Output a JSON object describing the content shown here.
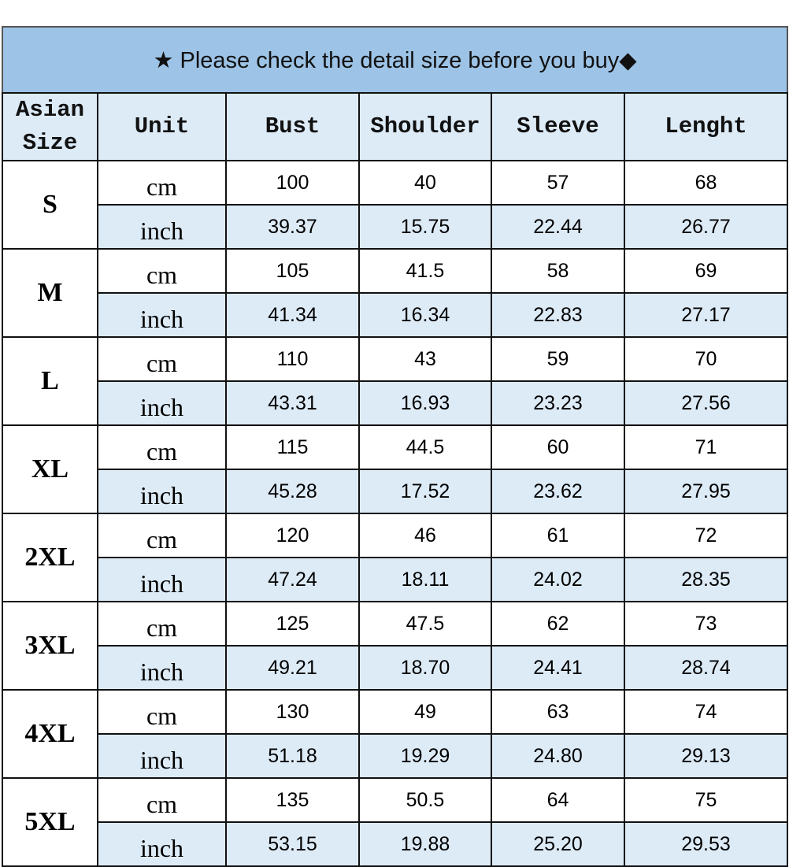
{
  "title": "★ Please check the detail size before you buy◆",
  "headers": [
    "Asian Size",
    "Unit",
    "Bust",
    "Shoulder",
    "Sleeve",
    "Lenght"
  ],
  "colors": {
    "banner": "#9dc3e6",
    "header_bg": "#ddebf7",
    "inch_row_bg": "#ddebf7",
    "cm_row_bg": "#ffffff"
  },
  "units": {
    "cm": "cm",
    "inch": "inch"
  },
  "rows": [
    {
      "size": "S",
      "cm": [
        "100",
        "40",
        "57",
        "68"
      ],
      "inch": [
        "39.37",
        "15.75",
        "22.44",
        "26.77"
      ]
    },
    {
      "size": "M",
      "cm": [
        "105",
        "41.5",
        "58",
        "69"
      ],
      "inch": [
        "41.34",
        "16.34",
        "22.83",
        "27.17"
      ]
    },
    {
      "size": "L",
      "cm": [
        "110",
        "43",
        "59",
        "70"
      ],
      "inch": [
        "43.31",
        "16.93",
        "23.23",
        "27.56"
      ]
    },
    {
      "size": "XL",
      "cm": [
        "115",
        "44.5",
        "60",
        "71"
      ],
      "inch": [
        "45.28",
        "17.52",
        "23.62",
        "27.95"
      ]
    },
    {
      "size": "2XL",
      "cm": [
        "120",
        "46",
        "61",
        "72"
      ],
      "inch": [
        "47.24",
        "18.11",
        "24.02",
        "28.35"
      ]
    },
    {
      "size": "3XL",
      "cm": [
        "125",
        "47.5",
        "62",
        "73"
      ],
      "inch": [
        "49.21",
        "18.70",
        "24.41",
        "28.74"
      ]
    },
    {
      "size": "4XL",
      "cm": [
        "130",
        "49",
        "63",
        "74"
      ],
      "inch": [
        "51.18",
        "19.29",
        "24.80",
        "29.13"
      ]
    },
    {
      "size": "5XL",
      "cm": [
        "135",
        "50.5",
        "64",
        "75"
      ],
      "inch": [
        "53.15",
        "19.88",
        "25.20",
        "29.53"
      ]
    }
  ]
}
